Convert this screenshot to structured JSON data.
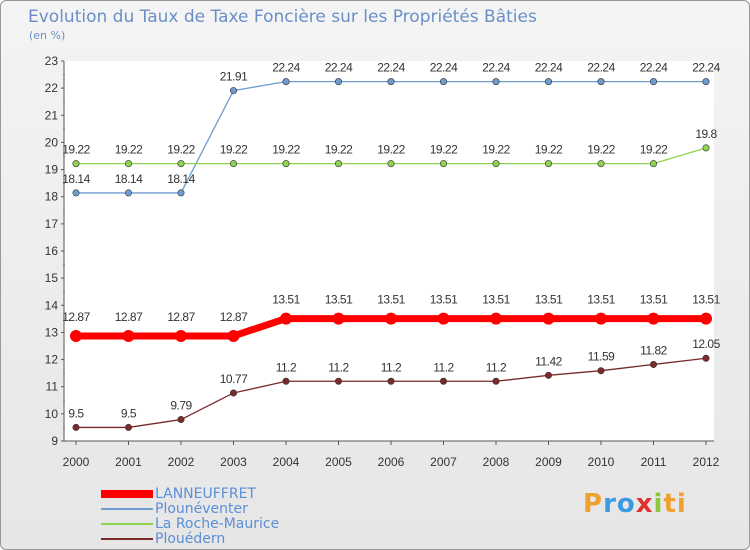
{
  "chart_data": {
    "type": "line",
    "title": "Evolution du Taux de Taxe Foncière sur les Propriétés Bâties",
    "unit": "(en %)",
    "xlabel": "",
    "ylabel": "",
    "x": [
      "2000",
      "2001",
      "2002",
      "2003",
      "2004",
      "2005",
      "2006",
      "2007",
      "2008",
      "2009",
      "2010",
      "2011",
      "2012"
    ],
    "ylim": [
      9,
      23
    ],
    "yticks": [
      9,
      10,
      11,
      12,
      13,
      14,
      15,
      16,
      17,
      18,
      19,
      20,
      21,
      22,
      23
    ],
    "series": [
      {
        "name": "LANNEUFFRET",
        "color": "#ff0000",
        "values": [
          12.87,
          12.87,
          12.87,
          12.87,
          13.51,
          13.51,
          13.51,
          13.51,
          13.51,
          13.51,
          13.51,
          13.51,
          13.51
        ],
        "labels": [
          "12.87",
          "12.87",
          "12.87",
          "12.87",
          "13.51",
          "13.51",
          "13.51",
          "13.51",
          "13.51",
          "13.51",
          "13.51",
          "13.51",
          "13.51"
        ]
      },
      {
        "name": "Plounéventer",
        "color": "#6e9ccf",
        "values": [
          18.14,
          18.14,
          18.14,
          21.91,
          22.24,
          22.24,
          22.24,
          22.24,
          22.24,
          22.24,
          22.24,
          22.24,
          22.24
        ],
        "labels": [
          "18.14",
          "18.14",
          "18.14",
          "21.91",
          "22.24",
          "22.24",
          "22.24",
          "22.24",
          "22.24",
          "22.24",
          "22.24",
          "22.24",
          "22.24"
        ]
      },
      {
        "name": "La Roche-Maurice",
        "color": "#8fd44f",
        "values": [
          19.22,
          19.22,
          19.22,
          19.22,
          19.22,
          19.22,
          19.22,
          19.22,
          19.22,
          19.22,
          19.22,
          19.22,
          19.8
        ],
        "labels": [
          "19.22",
          "19.22",
          "19.22",
          "19.22",
          "19.22",
          "19.22",
          "19.22",
          "19.22",
          "19.22",
          "19.22",
          "19.22",
          "19.22",
          "19.8"
        ]
      },
      {
        "name": "Plouédern",
        "color": "#7a2a2a",
        "values": [
          9.5,
          9.5,
          9.79,
          10.77,
          11.2,
          11.2,
          11.2,
          11.2,
          11.2,
          11.42,
          11.59,
          11.82,
          12.05
        ],
        "labels": [
          "9.5",
          "9.5",
          "9.79",
          "10.77",
          "11.2",
          "11.2",
          "11.2",
          "11.2",
          "11.2",
          "11.42",
          "11.59",
          "11.82",
          "12.05"
        ]
      }
    ],
    "legend_position": "bottom-left"
  },
  "brand": "Proxiti",
  "brand_letters": [
    "P",
    "r",
    "o",
    "x",
    "i",
    "ti"
  ]
}
